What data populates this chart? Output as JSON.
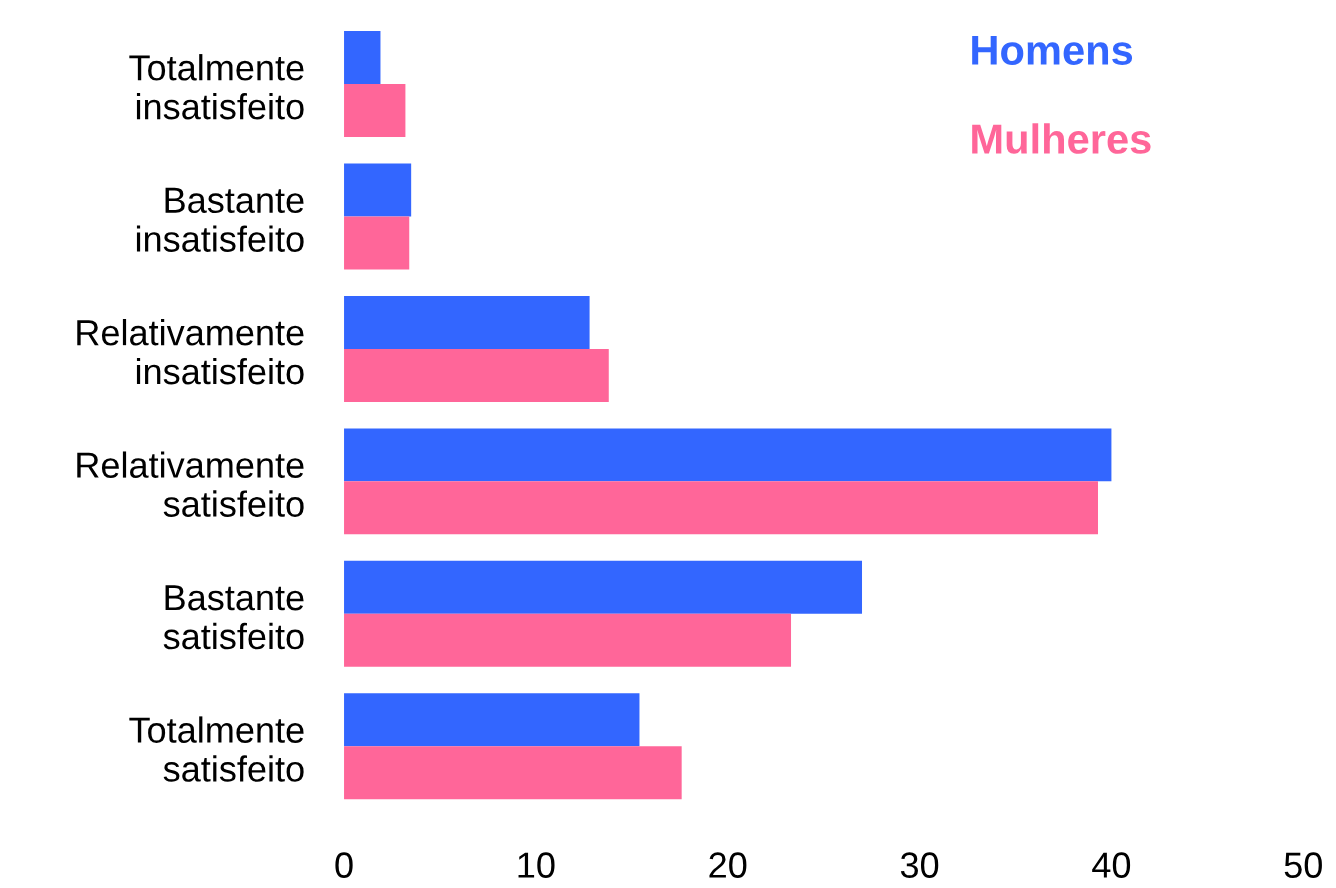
{
  "chart_data": {
    "type": "bar",
    "orientation": "horizontal",
    "categories": [
      "Totalmente\ninsatisfeito",
      "Bastante\ninsatisfeito",
      "Relativamente\ninsatisfeito",
      "Relativamente\nsatisfeito",
      "Bastante\nsatisfeito",
      "Totalmente\nsatisfeito"
    ],
    "series": [
      {
        "name": "Homens",
        "color": "#3366ff",
        "values": [
          1.9,
          3.5,
          12.8,
          40.0,
          27.0,
          15.4
        ]
      },
      {
        "name": "Mulheres",
        "color": "#ff6699",
        "values": [
          3.2,
          3.4,
          13.8,
          39.3,
          23.3,
          17.6
        ]
      }
    ],
    "xlim": [
      0,
      50
    ],
    "xticks": [
      0,
      10,
      20,
      30,
      40,
      50
    ],
    "grid": false,
    "legend": "top right"
  }
}
